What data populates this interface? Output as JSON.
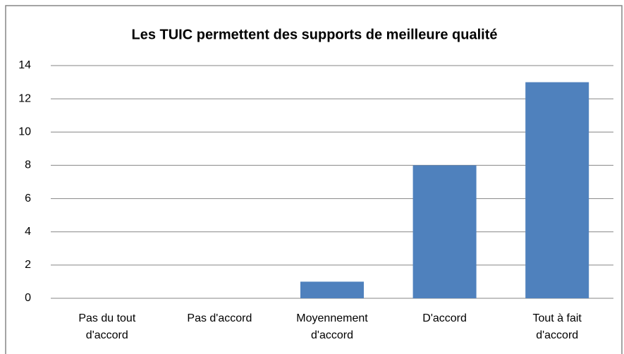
{
  "chart_data": {
    "type": "bar",
    "title": "Les TUIC permettent des supports de meilleure qualité",
    "categories": [
      "Pas du tout d'accord",
      "Pas d'accord",
      "Moyennement d'accord",
      "D'accord",
      "Tout à fait d'accord"
    ],
    "values": [
      0,
      0,
      1,
      8,
      13
    ],
    "color": "#4f81bd",
    "ylim": [
      0,
      14
    ],
    "yticks": [
      0,
      2,
      4,
      6,
      8,
      10,
      12,
      14
    ],
    "grid": true
  }
}
